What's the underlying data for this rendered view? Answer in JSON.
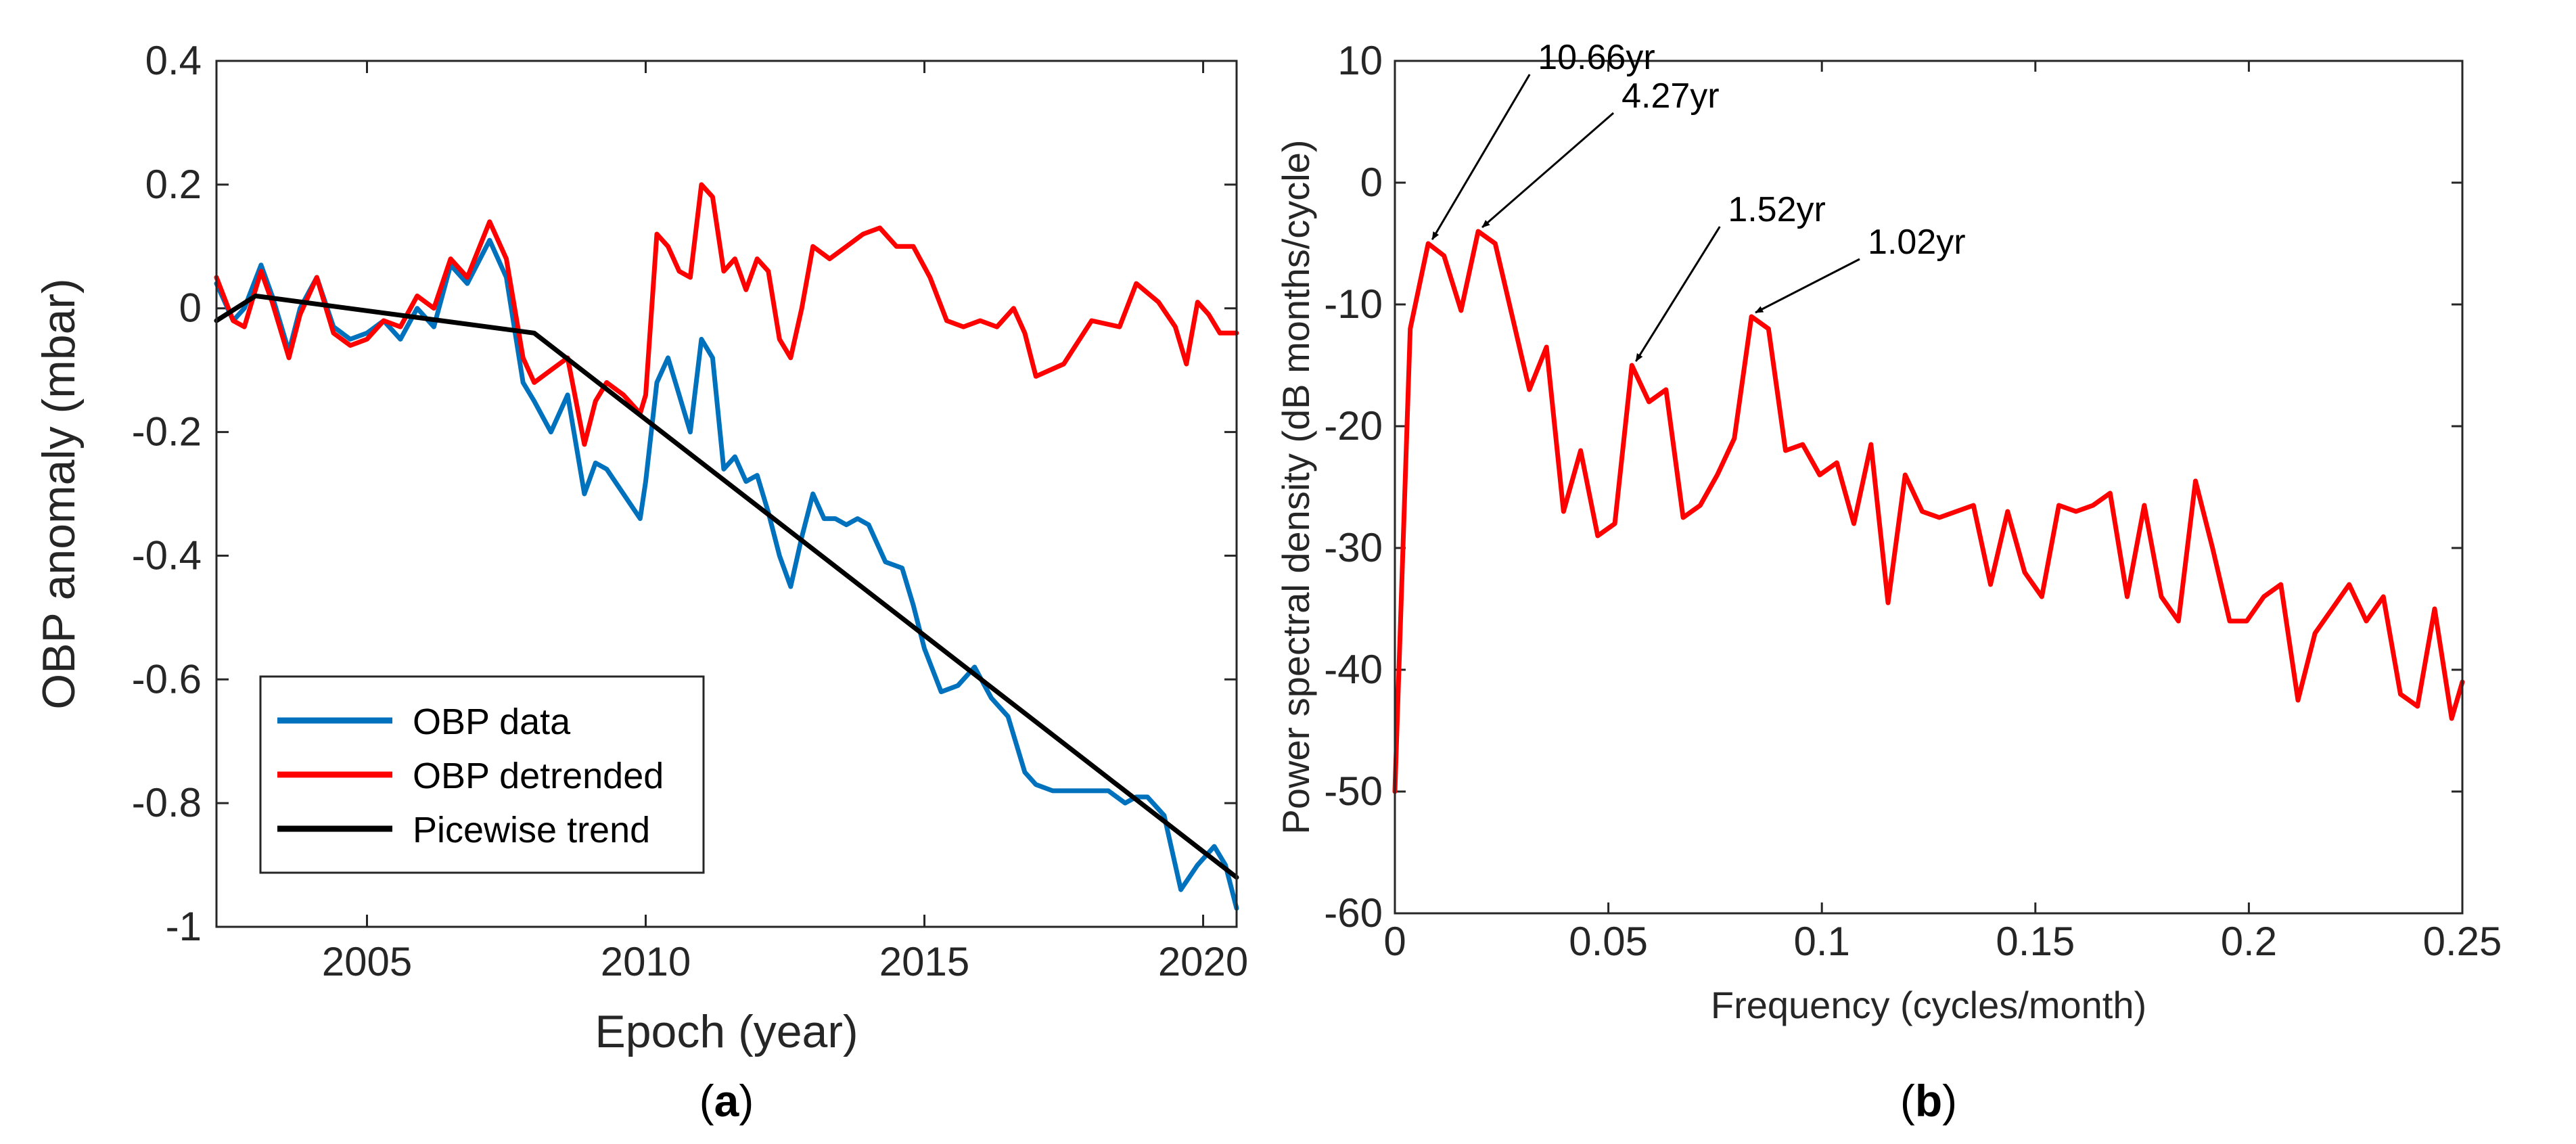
{
  "panels": {
    "a_label_open": "(",
    "a_label_letter": "a",
    "a_label_close": ")",
    "b_label_open": "(",
    "b_label_letter": "b",
    "b_label_close": ")"
  },
  "chart_data": [
    {
      "id": "a",
      "type": "line",
      "title": "",
      "xlabel": "Epoch (year)",
      "ylabel": "OBP anomaly (mbar)",
      "xlim": [
        2002.3,
        2020.6
      ],
      "ylim": [
        -1,
        0.4
      ],
      "xticks": [
        2005,
        2010,
        2015,
        2020
      ],
      "xtick_labels": [
        "2005",
        "2010",
        "2015",
        "2020"
      ],
      "yticks": [
        -1,
        -0.8,
        -0.6,
        -0.4,
        -0.2,
        0,
        0.2,
        0.4
      ],
      "ytick_labels": [
        "-1",
        "-0.8",
        "-0.6",
        "-0.4",
        "-0.2",
        "0",
        "0.2",
        "0.4"
      ],
      "grid": false,
      "legend_position": "bottom-left",
      "series": [
        {
          "name": "OBP data",
          "color": "#0072BD",
          "x": [
            2002.3,
            2002.6,
            2002.8,
            2003.1,
            2003.3,
            2003.6,
            2003.8,
            2004.1,
            2004.4,
            2004.7,
            2005.0,
            2005.3,
            2005.6,
            2005.9,
            2006.2,
            2006.5,
            2006.8,
            2007.2,
            2007.5,
            2007.8,
            2008.0,
            2008.3,
            2008.6,
            2008.9,
            2009.1,
            2009.3,
            2009.6,
            2009.9,
            2010.0,
            2010.2,
            2010.4,
            2010.6,
            2010.8,
            2011.0,
            2011.2,
            2011.4,
            2011.6,
            2011.8,
            2012.0,
            2012.2,
            2012.4,
            2012.6,
            2012.8,
            2013.0,
            2013.2,
            2013.4,
            2013.6,
            2013.8,
            2014.0,
            2014.3,
            2014.6,
            2014.8,
            2015.0,
            2015.3,
            2015.6,
            2015.9,
            2016.2,
            2016.5,
            2016.8,
            2017.0,
            2017.3,
            2017.6,
            2018.0,
            2018.3,
            2018.6,
            2018.8,
            2019.0,
            2019.3,
            2019.6,
            2019.9,
            2020.2,
            2020.4,
            2020.6
          ],
          "values": [
            0.04,
            -0.02,
            0.0,
            0.07,
            0.02,
            -0.07,
            0.0,
            0.05,
            -0.03,
            -0.05,
            -0.04,
            -0.02,
            -0.05,
            0.0,
            -0.03,
            0.07,
            0.04,
            0.11,
            0.05,
            -0.12,
            -0.15,
            -0.2,
            -0.14,
            -0.3,
            -0.25,
            -0.26,
            -0.3,
            -0.34,
            -0.28,
            -0.12,
            -0.08,
            -0.14,
            -0.2,
            -0.05,
            -0.08,
            -0.26,
            -0.24,
            -0.28,
            -0.27,
            -0.33,
            -0.4,
            -0.45,
            -0.37,
            -0.3,
            -0.34,
            -0.34,
            -0.35,
            -0.34,
            -0.35,
            -0.41,
            -0.42,
            -0.48,
            -0.55,
            -0.62,
            -0.61,
            -0.58,
            -0.63,
            -0.66,
            -0.75,
            -0.77,
            -0.78,
            -0.78,
            -0.78,
            -0.78,
            -0.8,
            -0.79,
            -0.79,
            -0.82,
            -0.94,
            -0.9,
            -0.87,
            -0.9,
            -0.97
          ]
        },
        {
          "name": "OBP detrended",
          "color": "#FF0000",
          "x": [
            2002.3,
            2002.6,
            2002.8,
            2003.1,
            2003.3,
            2003.6,
            2003.8,
            2004.1,
            2004.4,
            2004.7,
            2005.0,
            2005.3,
            2005.6,
            2005.9,
            2006.2,
            2006.5,
            2006.8,
            2007.2,
            2007.5,
            2007.8,
            2008.0,
            2008.3,
            2008.6,
            2008.9,
            2009.1,
            2009.3,
            2009.6,
            2009.9,
            2010.0,
            2010.2,
            2010.4,
            2010.6,
            2010.8,
            2011.0,
            2011.2,
            2011.4,
            2011.6,
            2011.8,
            2012.0,
            2012.2,
            2012.4,
            2012.6,
            2012.8,
            2013.0,
            2013.3,
            2013.6,
            2013.9,
            2014.2,
            2014.5,
            2014.8,
            2015.1,
            2015.4,
            2015.7,
            2016.0,
            2016.3,
            2016.6,
            2016.8,
            2017.0,
            2017.5,
            2018.0,
            2018.5,
            2018.8,
            2019.2,
            2019.5,
            2019.7,
            2019.9,
            2020.1,
            2020.3,
            2020.6
          ],
          "values": [
            0.05,
            -0.02,
            -0.03,
            0.06,
            0.01,
            -0.08,
            -0.01,
            0.05,
            -0.04,
            -0.06,
            -0.05,
            -0.02,
            -0.03,
            0.02,
            0.0,
            0.08,
            0.05,
            0.14,
            0.08,
            -0.08,
            -0.12,
            -0.1,
            -0.08,
            -0.22,
            -0.15,
            -0.12,
            -0.14,
            -0.17,
            -0.14,
            0.12,
            0.1,
            0.06,
            0.05,
            0.2,
            0.18,
            0.06,
            0.08,
            0.03,
            0.08,
            0.06,
            -0.05,
            -0.08,
            0.0,
            0.1,
            0.08,
            0.1,
            0.12,
            0.13,
            0.1,
            0.1,
            0.05,
            -0.02,
            -0.03,
            -0.02,
            -0.03,
            0.0,
            -0.04,
            -0.11,
            -0.09,
            -0.02,
            -0.03,
            0.04,
            0.01,
            -0.03,
            -0.09,
            0.01,
            -0.01,
            -0.04,
            -0.04
          ]
        },
        {
          "name": "Picewise trend",
          "color": "#000000",
          "x": [
            2002.3,
            2003.0,
            2008.0,
            2020.6
          ],
          "values": [
            -0.02,
            0.02,
            -0.04,
            -0.92
          ]
        }
      ]
    },
    {
      "id": "b",
      "type": "line",
      "title": "",
      "xlabel": "Frequency (cycles/month)",
      "ylabel": "Power spectral density (dB months/cycle)",
      "xlim": [
        0,
        0.25
      ],
      "ylim": [
        -60,
        10
      ],
      "xticks": [
        0,
        0.05,
        0.1,
        0.15,
        0.2,
        0.25
      ],
      "xtick_labels": [
        "0",
        "0.05",
        "0.1",
        "0.15",
        "0.2",
        "0.25"
      ],
      "yticks": [
        -60,
        -50,
        -40,
        -30,
        -20,
        -10,
        0,
        10
      ],
      "ytick_labels": [
        "-60",
        "-50",
        "-40",
        "-30",
        "-20",
        "-10",
        "0",
        "10"
      ],
      "grid": false,
      "series": [
        {
          "name": "PSD",
          "color": "#FF0000",
          "x": [
            0.0,
            0.0036,
            0.0078,
            0.0115,
            0.0155,
            0.0195,
            0.0235,
            0.0275,
            0.0315,
            0.0355,
            0.0395,
            0.0435,
            0.0475,
            0.0515,
            0.0555,
            0.0595,
            0.0635,
            0.0675,
            0.0715,
            0.0755,
            0.0795,
            0.0835,
            0.0875,
            0.0915,
            0.0955,
            0.0995,
            0.1035,
            0.1075,
            0.1115,
            0.1155,
            0.1195,
            0.1235,
            0.1275,
            0.1315,
            0.1355,
            0.1395,
            0.1435,
            0.1475,
            0.1515,
            0.1555,
            0.1595,
            0.1635,
            0.1675,
            0.1715,
            0.1755,
            0.1795,
            0.1835,
            0.1875,
            0.1915,
            0.1955,
            0.1995,
            0.2035,
            0.2075,
            0.2115,
            0.2155,
            0.2195,
            0.2235,
            0.2275,
            0.2315,
            0.2355,
            0.2395,
            0.2435,
            0.2475,
            0.25
          ],
          "values": [
            -50,
            -12,
            -5,
            -6,
            -10.5,
            -4,
            -5,
            -11,
            -17,
            -13.5,
            -27,
            -22,
            -29,
            -28,
            -15,
            -18,
            -17,
            -27.5,
            -26.5,
            -24,
            -21,
            -11,
            -12,
            -22,
            -21.5,
            -24,
            -23,
            -28,
            -21.5,
            -34.5,
            -24,
            -27,
            -27.5,
            -27,
            -26.5,
            -33,
            -27,
            -32,
            -34,
            -26.5,
            -27,
            -26.5,
            -25.5,
            -34,
            -26.5,
            -34,
            -36,
            -24.5,
            -30,
            -36,
            -36,
            -34,
            -33,
            -42.5,
            -37,
            -35,
            -33,
            -36,
            -34,
            -42,
            -43,
            -35,
            -44,
            -41
          ]
        }
      ],
      "annotations": [
        {
          "label": "10.66yr",
          "x": 0.0078,
          "y": -5
        },
        {
          "label": "4.27yr",
          "x": 0.0195,
          "y": -4
        },
        {
          "label": "1.52yr",
          "x": 0.0555,
          "y": -15
        },
        {
          "label": "1.02yr",
          "x": 0.0835,
          "y": -11
        }
      ]
    }
  ]
}
